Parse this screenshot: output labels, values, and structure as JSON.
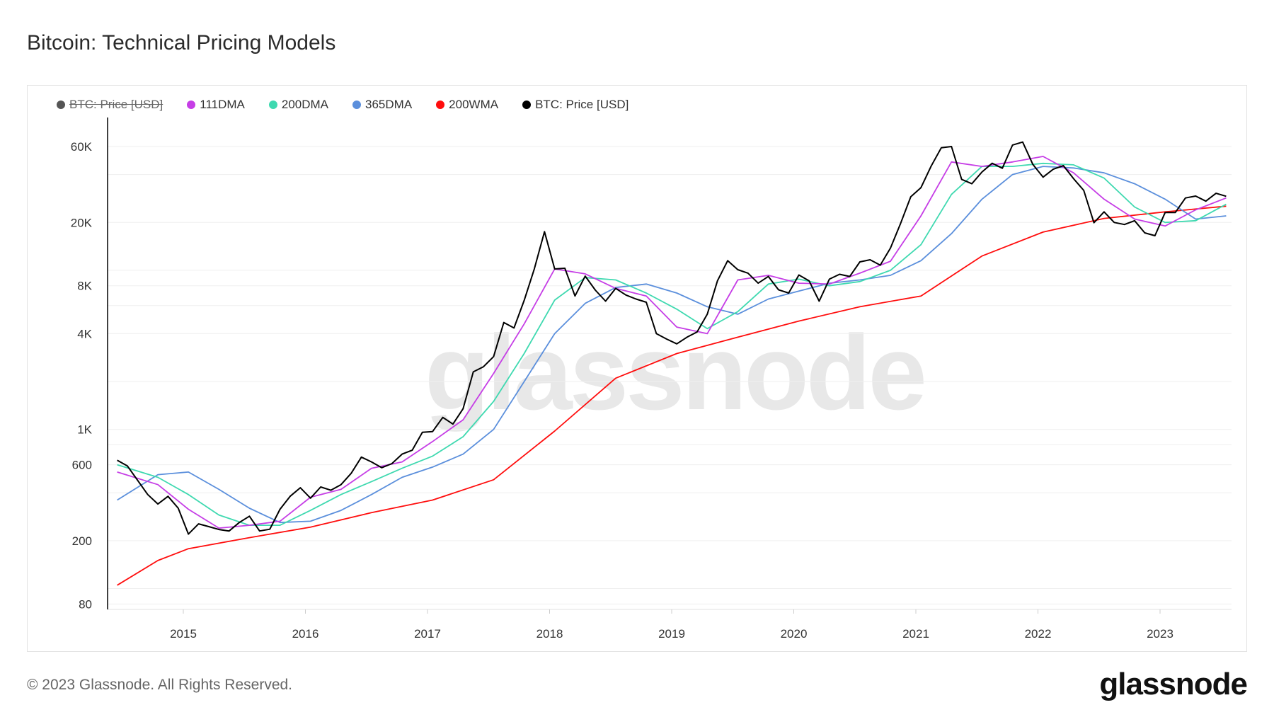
{
  "title": "Bitcoin: Technical Pricing Models",
  "footer": "© 2023 Glassnode. All Rights Reserved.",
  "logo": "glassnode",
  "watermark": "glassnode",
  "chart_data": {
    "type": "line",
    "title": "Bitcoin: Technical Pricing Models",
    "yscale": "log",
    "ylim": [
      80,
      100000
    ],
    "xlim": [
      "2014-06",
      "2023-08"
    ],
    "grid": true,
    "legend_position": "top-left",
    "yticks": [
      {
        "value": 60000,
        "label": "60K"
      },
      {
        "value": 20000,
        "label": "20K"
      },
      {
        "value": 8000,
        "label": "8K"
      },
      {
        "value": 4000,
        "label": "4K"
      },
      {
        "value": 1000,
        "label": "1K"
      },
      {
        "value": 600,
        "label": "600"
      },
      {
        "value": 200,
        "label": "200"
      },
      {
        "value": 80,
        "label": "80"
      }
    ],
    "xticks": [
      "2015",
      "2016",
      "2017",
      "2018",
      "2019",
      "2020",
      "2021",
      "2022",
      "2023"
    ],
    "legend": [
      {
        "name": "BTC: Price [USD]",
        "color": "#555555",
        "disabled": true
      },
      {
        "name": "111DMA",
        "color": "#c63ee6"
      },
      {
        "name": "200DMA",
        "color": "#3fd9b0"
      },
      {
        "name": "365DMA",
        "color": "#5b8fdc"
      },
      {
        "name": "200WMA",
        "color": "#ff0d0d"
      },
      {
        "name": "BTC: Price [USD]",
        "color": "#000000"
      }
    ],
    "series": [
      {
        "name": "200WMA",
        "color": "#ff0d0d",
        "x": [
          "2014-06",
          "2014-10",
          "2015-01",
          "2015-07",
          "2016-01",
          "2016-07",
          "2017-01",
          "2017-07",
          "2018-01",
          "2018-07",
          "2019-01",
          "2019-07",
          "2020-01",
          "2020-07",
          "2021-01",
          "2021-07",
          "2022-01",
          "2022-07",
          "2023-01",
          "2023-07"
        ],
        "y": [
          105,
          150,
          178,
          209,
          243,
          300,
          360,
          483,
          977,
          2100,
          3000,
          3800,
          4800,
          5900,
          6900,
          12300,
          17400,
          21200,
          23300,
          25300
        ]
      },
      {
        "name": "365DMA",
        "color": "#5b8fdc",
        "x": [
          "2014-06",
          "2014-10",
          "2015-01",
          "2015-04",
          "2015-07",
          "2015-10",
          "2016-01",
          "2016-04",
          "2016-07",
          "2016-10",
          "2017-01",
          "2017-04",
          "2017-07",
          "2017-10",
          "2018-01",
          "2018-04",
          "2018-07",
          "2018-10",
          "2019-01",
          "2019-04",
          "2019-07",
          "2019-10",
          "2020-01",
          "2020-04",
          "2020-07",
          "2020-10",
          "2021-01",
          "2021-04",
          "2021-07",
          "2021-10",
          "2022-01",
          "2022-04",
          "2022-07",
          "2022-10",
          "2023-01",
          "2023-04",
          "2023-07"
        ],
        "y": [
          360,
          520,
          540,
          420,
          320,
          260,
          265,
          310,
          390,
          500,
          580,
          700,
          1000,
          2000,
          4000,
          6200,
          7800,
          8200,
          7200,
          5900,
          5300,
          6600,
          7400,
          8300,
          8700,
          9300,
          11500,
          17000,
          28000,
          40000,
          45000,
          44000,
          41000,
          35000,
          28000,
          21000,
          22000
        ]
      },
      {
        "name": "200DMA",
        "color": "#3fd9b0",
        "x": [
          "2014-06",
          "2014-10",
          "2015-01",
          "2015-04",
          "2015-07",
          "2015-10",
          "2016-01",
          "2016-04",
          "2016-07",
          "2016-10",
          "2017-01",
          "2017-04",
          "2017-07",
          "2017-10",
          "2018-01",
          "2018-04",
          "2018-07",
          "2018-10",
          "2019-01",
          "2019-04",
          "2019-07",
          "2019-10",
          "2020-01",
          "2020-04",
          "2020-07",
          "2020-10",
          "2021-01",
          "2021-04",
          "2021-07",
          "2021-10",
          "2022-01",
          "2022-04",
          "2022-07",
          "2022-10",
          "2023-01",
          "2023-04",
          "2023-07"
        ],
        "y": [
          600,
          500,
          390,
          290,
          250,
          250,
          310,
          390,
          470,
          570,
          680,
          900,
          1500,
          3000,
          6500,
          9000,
          8700,
          7200,
          5700,
          4300,
          5500,
          8200,
          8800,
          8000,
          8500,
          10000,
          14500,
          30000,
          45000,
          45000,
          47000,
          46000,
          38000,
          25000,
          20000,
          20500,
          26000
        ]
      },
      {
        "name": "111DMA",
        "color": "#c63ee6",
        "x": [
          "2014-06",
          "2014-10",
          "2015-01",
          "2015-04",
          "2015-07",
          "2015-10",
          "2016-01",
          "2016-04",
          "2016-07",
          "2016-10",
          "2017-01",
          "2017-04",
          "2017-07",
          "2017-10",
          "2018-01",
          "2018-04",
          "2018-07",
          "2018-10",
          "2019-01",
          "2019-04",
          "2019-07",
          "2019-10",
          "2020-01",
          "2020-04",
          "2020-07",
          "2020-10",
          "2021-01",
          "2021-04",
          "2021-07",
          "2021-10",
          "2022-01",
          "2022-04",
          "2022-07",
          "2022-10",
          "2023-01",
          "2023-04",
          "2023-07"
        ],
        "y": [
          540,
          450,
          315,
          240,
          250,
          265,
          375,
          420,
          570,
          625,
          840,
          1150,
          2250,
          4600,
          10200,
          9500,
          7700,
          6900,
          4400,
          4000,
          8700,
          9300,
          8300,
          8200,
          9600,
          11400,
          22000,
          48000,
          45000,
          48000,
          52000,
          41000,
          28000,
          21000,
          19000,
          24000,
          28500
        ]
      },
      {
        "name": "BTC: Price [USD]",
        "color": "#000000",
        "x": [
          "2014-06",
          "2014-07",
          "2014-08",
          "2014-09",
          "2014-10",
          "2014-11",
          "2014-12",
          "2015-01",
          "2015-02",
          "2015-03",
          "2015-04",
          "2015-05",
          "2015-06",
          "2015-07",
          "2015-08",
          "2015-09",
          "2015-10",
          "2015-11",
          "2015-12",
          "2016-01",
          "2016-02",
          "2016-03",
          "2016-04",
          "2016-05",
          "2016-06",
          "2016-07",
          "2016-08",
          "2016-09",
          "2016-10",
          "2016-11",
          "2016-12",
          "2017-01",
          "2017-02",
          "2017-03",
          "2017-04",
          "2017-05",
          "2017-06",
          "2017-07",
          "2017-08",
          "2017-09",
          "2017-10",
          "2017-11",
          "2017-12",
          "2018-01",
          "2018-02",
          "2018-03",
          "2018-04",
          "2018-05",
          "2018-06",
          "2018-07",
          "2018-08",
          "2018-09",
          "2018-10",
          "2018-11",
          "2018-12",
          "2019-01",
          "2019-02",
          "2019-03",
          "2019-04",
          "2019-05",
          "2019-06",
          "2019-07",
          "2019-08",
          "2019-09",
          "2019-10",
          "2019-11",
          "2019-12",
          "2020-01",
          "2020-02",
          "2020-03",
          "2020-04",
          "2020-05",
          "2020-06",
          "2020-07",
          "2020-08",
          "2020-09",
          "2020-10",
          "2020-11",
          "2020-12",
          "2021-01",
          "2021-02",
          "2021-03",
          "2021-04",
          "2021-05",
          "2021-06",
          "2021-07",
          "2021-08",
          "2021-09",
          "2021-10",
          "2021-11",
          "2021-12",
          "2022-01",
          "2022-02",
          "2022-03",
          "2022-04",
          "2022-05",
          "2022-06",
          "2022-07",
          "2022-08",
          "2022-09",
          "2022-10",
          "2022-11",
          "2022-12",
          "2023-01",
          "2023-02",
          "2023-03",
          "2023-04",
          "2023-05",
          "2023-06",
          "2023-07"
        ],
        "y": [
          640,
          590,
          480,
          390,
          340,
          380,
          320,
          220,
          255,
          245,
          235,
          230,
          260,
          285,
          230,
          236,
          315,
          380,
          430,
          370,
          435,
          415,
          450,
          530,
          670,
          625,
          575,
          610,
          700,
          740,
          960,
          970,
          1190,
          1080,
          1350,
          2300,
          2480,
          2870,
          4700,
          4340,
          6470,
          10200,
          17500,
          10200,
          10300,
          6900,
          9200,
          7500,
          6400,
          7700,
          7000,
          6600,
          6300,
          4000,
          3700,
          3450,
          3800,
          4100,
          5300,
          8600,
          11500,
          10100,
          9600,
          8300,
          9150,
          7550,
          7200,
          9350,
          8600,
          6400,
          8800,
          9450,
          9150,
          11300,
          11650,
          10780,
          13800,
          19700,
          29000,
          33100,
          45200,
          58900,
          60000,
          37300,
          35000,
          41500,
          47100,
          43800,
          61300,
          64000,
          46300,
          38500,
          43200,
          45500,
          37700,
          31800,
          19900,
          23300,
          20000,
          19400,
          20500,
          17200,
          16500,
          23100,
          23100,
          28500,
          29300,
          27200,
          30500,
          29200
        ]
      }
    ]
  }
}
